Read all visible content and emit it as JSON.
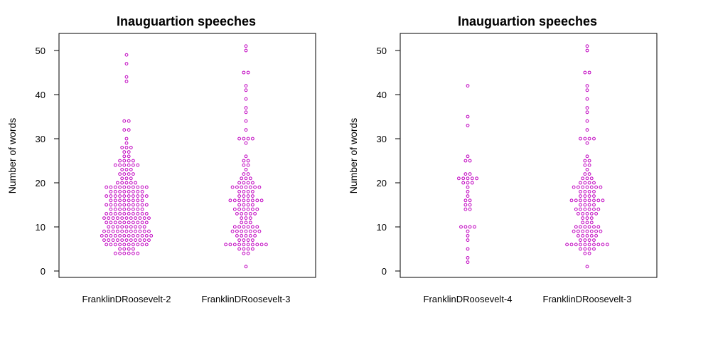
{
  "chart_data": [
    {
      "type": "scatter",
      "subtype": "beeswarm",
      "title": "Inauguartion speeches",
      "ylabel": "Number of words",
      "xlabel": "",
      "ylim": [
        0,
        52
      ],
      "yticks": [
        0,
        10,
        20,
        30,
        40,
        50
      ],
      "grid": false,
      "point_color": "#c000c0",
      "series": [
        {
          "category": "FranklinDRoosevelt-2",
          "values": [
            4,
            4,
            4,
            4,
            4,
            4,
            5,
            5,
            5,
            5,
            6,
            6,
            6,
            6,
            6,
            6,
            6,
            6,
            6,
            6,
            7,
            7,
            7,
            7,
            7,
            7,
            7,
            7,
            7,
            7,
            7,
            8,
            8,
            8,
            8,
            8,
            8,
            8,
            8,
            8,
            8,
            8,
            8,
            9,
            9,
            9,
            9,
            9,
            9,
            9,
            9,
            9,
            9,
            9,
            10,
            10,
            10,
            10,
            10,
            10,
            10,
            10,
            10,
            11,
            11,
            11,
            11,
            11,
            11,
            11,
            11,
            11,
            11,
            12,
            12,
            12,
            12,
            12,
            12,
            12,
            12,
            12,
            12,
            12,
            13,
            13,
            13,
            13,
            13,
            13,
            13,
            13,
            13,
            13,
            14,
            14,
            14,
            14,
            14,
            14,
            14,
            14,
            15,
            15,
            15,
            15,
            15,
            15,
            15,
            15,
            15,
            15,
            16,
            16,
            16,
            16,
            16,
            16,
            16,
            16,
            17,
            17,
            17,
            17,
            17,
            17,
            17,
            17,
            17,
            17,
            18,
            18,
            18,
            18,
            18,
            18,
            18,
            18,
            19,
            19,
            19,
            19,
            19,
            19,
            19,
            19,
            19,
            19,
            20,
            20,
            20,
            20,
            20,
            21,
            21,
            21,
            22,
            22,
            22,
            22,
            23,
            23,
            23,
            24,
            24,
            24,
            24,
            24,
            24,
            25,
            25,
            25,
            25,
            26,
            26,
            27,
            27,
            28,
            28,
            28,
            29,
            30,
            32,
            32,
            34,
            34,
            43,
            44,
            47,
            49
          ]
        },
        {
          "category": "FranklinDRoosevelt-3",
          "values": [
            1,
            4,
            4,
            5,
            5,
            5,
            5,
            6,
            6,
            6,
            6,
            6,
            6,
            6,
            6,
            6,
            6,
            7,
            7,
            7,
            7,
            8,
            8,
            8,
            8,
            8,
            9,
            9,
            9,
            9,
            9,
            9,
            9,
            10,
            10,
            10,
            10,
            10,
            10,
            11,
            11,
            11,
            12,
            12,
            12,
            13,
            13,
            13,
            13,
            13,
            14,
            14,
            14,
            14,
            14,
            14,
            15,
            15,
            15,
            15,
            16,
            16,
            16,
            16,
            16,
            16,
            16,
            16,
            17,
            17,
            17,
            17,
            18,
            18,
            18,
            18,
            19,
            19,
            19,
            19,
            19,
            19,
            19,
            20,
            20,
            20,
            20,
            21,
            21,
            21,
            22,
            22,
            23,
            24,
            24,
            25,
            25,
            26,
            29,
            30,
            30,
            30,
            30,
            32,
            34,
            36,
            37,
            39,
            41,
            42,
            45,
            45,
            50,
            51
          ]
        }
      ]
    },
    {
      "type": "scatter",
      "subtype": "beeswarm",
      "title": "Inauguartion speeches",
      "ylabel": "Number of words",
      "xlabel": "",
      "ylim": [
        0,
        52
      ],
      "yticks": [
        0,
        10,
        20,
        30,
        40,
        50
      ],
      "grid": false,
      "point_color": "#c000c0",
      "series": [
        {
          "category": "FranklinDRoosevelt-4",
          "values": [
            2,
            3,
            5,
            7,
            8,
            9,
            10,
            10,
            10,
            10,
            14,
            14,
            15,
            15,
            16,
            16,
            17,
            18,
            19,
            20,
            20,
            20,
            21,
            21,
            21,
            21,
            21,
            22,
            22,
            25,
            25,
            26,
            33,
            35,
            42
          ]
        },
        {
          "category": "FranklinDRoosevelt-3",
          "values": [
            1,
            4,
            4,
            5,
            5,
            5,
            5,
            6,
            6,
            6,
            6,
            6,
            6,
            6,
            6,
            6,
            6,
            7,
            7,
            7,
            7,
            8,
            8,
            8,
            8,
            8,
            9,
            9,
            9,
            9,
            9,
            9,
            9,
            10,
            10,
            10,
            10,
            10,
            10,
            11,
            11,
            11,
            12,
            12,
            12,
            13,
            13,
            13,
            13,
            13,
            14,
            14,
            14,
            14,
            14,
            14,
            15,
            15,
            15,
            15,
            16,
            16,
            16,
            16,
            16,
            16,
            16,
            16,
            17,
            17,
            17,
            17,
            18,
            18,
            18,
            18,
            19,
            19,
            19,
            19,
            19,
            19,
            19,
            20,
            20,
            20,
            20,
            21,
            21,
            21,
            22,
            22,
            23,
            24,
            24,
            25,
            25,
            26,
            29,
            30,
            30,
            30,
            30,
            32,
            34,
            36,
            37,
            39,
            41,
            42,
            45,
            45,
            50,
            51
          ]
        }
      ]
    }
  ]
}
